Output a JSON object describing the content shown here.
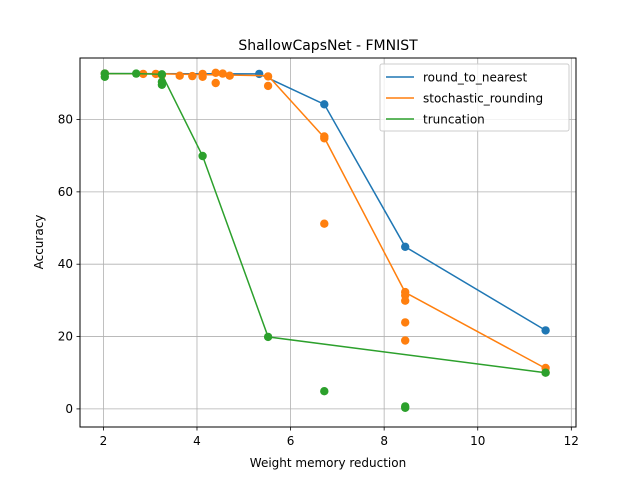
{
  "chart_data": {
    "type": "scatter",
    "title": "ShallowCapsNet - FMNIST",
    "xlabel": "Weight memory reduction",
    "ylabel": "Accuracy",
    "xlim": [
      1.5,
      12.1
    ],
    "ylim": [
      -5,
      97
    ],
    "xticks": [
      2,
      4,
      6,
      8,
      10,
      12
    ],
    "yticks": [
      0,
      20,
      40,
      60,
      80
    ],
    "grid": true,
    "legend_position": "top-right",
    "series": [
      {
        "name": "round_to_nearest",
        "color": "#1f77b4",
        "line": [
          [
            2.03,
            92.7
          ],
          [
            5.33,
            92.6
          ],
          [
            6.72,
            84.2
          ],
          [
            8.45,
            44.8
          ],
          [
            11.45,
            21.7
          ]
        ],
        "points": [
          [
            2.03,
            92.7
          ],
          [
            5.33,
            92.6
          ],
          [
            6.72,
            84.2
          ],
          [
            8.45,
            44.8
          ],
          [
            11.45,
            21.7
          ]
        ]
      },
      {
        "name": "stochastic_rounding",
        "color": "#ff7f0e",
        "line": [
          [
            2.03,
            92.7
          ],
          [
            3.25,
            92.6
          ],
          [
            4.12,
            92.4
          ],
          [
            5.52,
            92.1
          ],
          [
            6.72,
            75.0
          ],
          [
            8.45,
            32.2
          ],
          [
            11.45,
            11.2
          ]
        ],
        "points": [
          [
            2.03,
            92.7
          ],
          [
            2.85,
            92.6
          ],
          [
            3.12,
            92.6
          ],
          [
            3.25,
            92.3
          ],
          [
            3.63,
            92.1
          ],
          [
            3.9,
            92.0
          ],
          [
            4.12,
            92.6
          ],
          [
            4.12,
            91.8
          ],
          [
            4.4,
            92.9
          ],
          [
            4.4,
            90.1
          ],
          [
            4.55,
            92.7
          ],
          [
            4.7,
            92.1
          ],
          [
            5.52,
            91.9
          ],
          [
            5.52,
            89.3
          ],
          [
            6.72,
            75.3
          ],
          [
            6.72,
            74.8
          ],
          [
            6.72,
            51.2
          ],
          [
            8.45,
            32.3
          ],
          [
            8.45,
            31.4
          ],
          [
            8.45,
            29.9
          ],
          [
            8.45,
            23.9
          ],
          [
            8.45,
            18.9
          ],
          [
            11.45,
            11.3
          ],
          [
            11.45,
            10.1
          ]
        ]
      },
      {
        "name": "truncation",
        "color": "#2ca02c",
        "line": [
          [
            2.03,
            92.7
          ],
          [
            2.7,
            92.7
          ],
          [
            3.25,
            92.5
          ],
          [
            4.12,
            69.9
          ],
          [
            5.52,
            19.9
          ],
          [
            11.45,
            10.0
          ]
        ],
        "points": [
          [
            2.03,
            92.7
          ],
          [
            2.03,
            91.8
          ],
          [
            2.7,
            92.7
          ],
          [
            3.25,
            92.5
          ],
          [
            3.25,
            90.4
          ],
          [
            3.25,
            89.6
          ],
          [
            4.12,
            69.9
          ],
          [
            5.52,
            19.9
          ],
          [
            6.72,
            4.9
          ],
          [
            8.45,
            0.7
          ],
          [
            8.45,
            0.3
          ],
          [
            11.45,
            10.0
          ]
        ]
      }
    ]
  }
}
